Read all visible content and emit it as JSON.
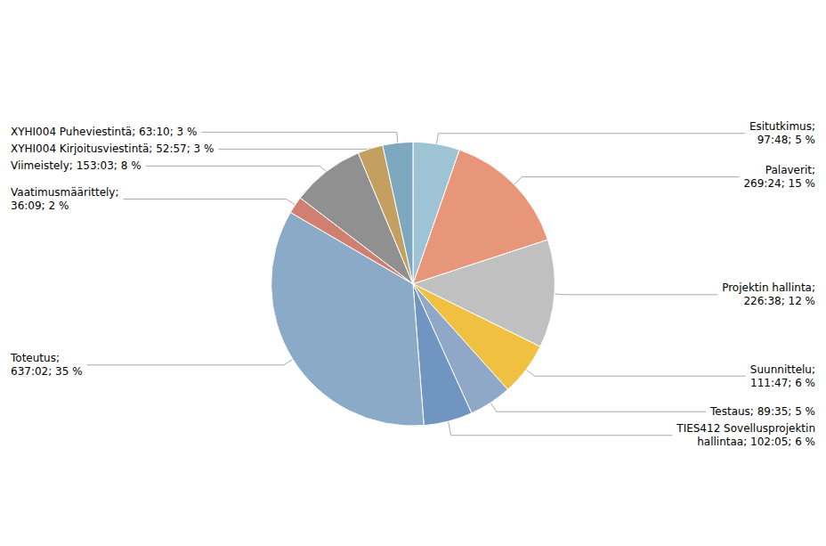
{
  "chart_data": {
    "type": "pie",
    "categories": [
      "Esitutkimus;\n97:48; 5 %",
      "Palaverit;\n269:24; 15 %",
      "Projektin hallinta;\n226:38; 12 %",
      "Suunnittelu;\n111:47; 6 %",
      "Testaus; 89:35; 5 %",
      "TIES412 Sovellusprojektin\nhallintaa; 102:05; 6 %",
      "Toteutus;\n637:02; 35 %",
      "Vaatimusmäärittely;\n36:09; 2 %",
      "Viimeistely; 153:03; 8 %",
      "XYHI004 Kirjoitusviestintä; 52:57; 3 %",
      "XYHI004 Puheviestintä; 63:10; 3 %"
    ],
    "values": [
      5868,
      16164,
      13598,
      6707,
      5375,
      6125,
      38222,
      2169,
      9183,
      3177,
      3790
    ],
    "colors": [
      "#9DC3D4",
      "#E8967A",
      "#C0C0C0",
      "#F0C040",
      "#8FA8C8",
      "#7095C0",
      "#8BAAC8",
      "#D08070",
      "#909090",
      "#C4A060",
      "#7DA8C0"
    ]
  }
}
